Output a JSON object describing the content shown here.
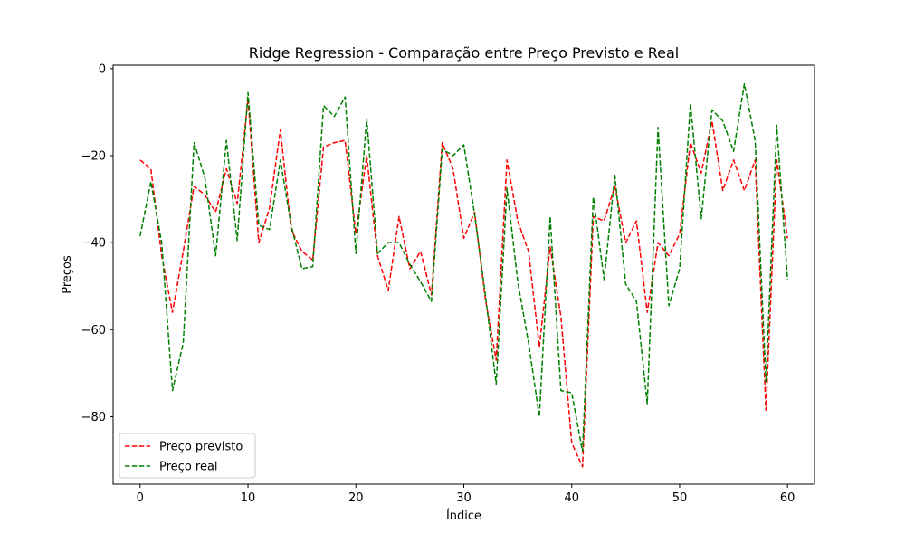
{
  "chart_data": {
    "type": "line",
    "title": "Ridge Regression - Comparação entre Preço Previsto e Real",
    "xlabel": "Índice",
    "ylabel": "Preços",
    "xlim": [
      -2.5,
      62.5
    ],
    "ylim": [
      -95.5,
      0.8
    ],
    "xticks": [
      0,
      10,
      20,
      30,
      40,
      50,
      60
    ],
    "yticks": [
      0,
      -20,
      -40,
      -60,
      -80
    ],
    "xtick_labels": [
      "0",
      "10",
      "20",
      "30",
      "40",
      "50",
      "60"
    ],
    "ytick_labels": [
      "0",
      "−20",
      "−40",
      "−60",
      "−80"
    ],
    "grid": false,
    "legend_position": "lower-left",
    "x": [
      0,
      1,
      2,
      3,
      4,
      5,
      6,
      7,
      8,
      9,
      10,
      11,
      12,
      13,
      14,
      15,
      16,
      17,
      18,
      19,
      20,
      21,
      22,
      23,
      24,
      25,
      26,
      27,
      28,
      29,
      30,
      31,
      32,
      33,
      34,
      35,
      36,
      37,
      38,
      39,
      40,
      41,
      42,
      43,
      44,
      45,
      46,
      47,
      48,
      49,
      50,
      51,
      52,
      53,
      54,
      55,
      56,
      57,
      58,
      59,
      60
    ],
    "series": [
      {
        "name": "Preço previsto",
        "color": "#ff0000",
        "linestyle": "dashed",
        "values": [
          -21,
          -23,
          -43,
          -56,
          -42,
          -27,
          -29,
          -33,
          -23,
          -31,
          -7,
          -40,
          -32,
          -14,
          -37,
          -42,
          -44,
          -18,
          -17,
          -16.5,
          -38,
          -20,
          -43,
          -51,
          -34,
          -46,
          -42,
          -52,
          -17,
          -23,
          -39,
          -33,
          -53,
          -67,
          -21,
          -35,
          -42,
          -64,
          -41,
          -57,
          -86,
          -91.5,
          -34,
          -35,
          -27,
          -40,
          -35,
          -56,
          -40,
          -43,
          -38,
          -17,
          -24,
          -12,
          -28,
          -21,
          -28,
          -21,
          -78.5,
          -21,
          -39
        ]
      },
      {
        "name": "Preço real",
        "color": "#008000",
        "linestyle": "dashed",
        "values": [
          -38.5,
          -26,
          -40,
          -74,
          -63,
          -17,
          -25,
          -43,
          -16.5,
          -39.5,
          -5.5,
          -36,
          -37,
          -21,
          -36,
          -46,
          -45.5,
          -8.5,
          -11,
          -6.5,
          -42.5,
          -11.5,
          -42.5,
          -40,
          -40,
          -45,
          -49,
          -53.5,
          -18.5,
          -20,
          -17.5,
          -33.5,
          -52,
          -72.5,
          -27.5,
          -49,
          -63,
          -80,
          -34,
          -74,
          -74.5,
          -88,
          -29.5,
          -48.5,
          -24.5,
          -49.5,
          -53.5,
          -77,
          -13.5,
          -54.5,
          -46,
          -8,
          -34.5,
          -9.5,
          -12,
          -19,
          -3.5,
          -16.5,
          -72,
          -13,
          -48.5
        ]
      }
    ]
  }
}
